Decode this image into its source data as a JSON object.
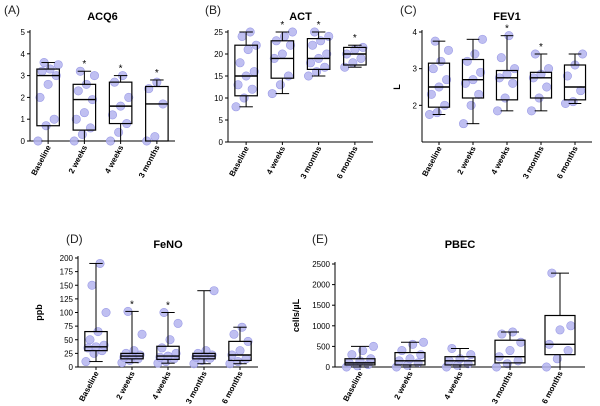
{
  "chart_data": [
    {
      "panel": "(A)",
      "title": "ACQ6",
      "type": "box",
      "ylabel": "",
      "ylim": [
        0,
        5
      ],
      "yticks": [
        0,
        1,
        2,
        3,
        4,
        5
      ],
      "categories": [
        "Baseline",
        "2 weeks",
        "4 weeks",
        "3 months"
      ],
      "significance": [
        "",
        "*",
        "*",
        "*"
      ],
      "boxes": [
        {
          "min": 0.0,
          "q1": 0.7,
          "median": 3.0,
          "q3": 3.3,
          "max": 3.6
        },
        {
          "min": 0.0,
          "q1": 0.5,
          "median": 1.9,
          "q3": 2.6,
          "max": 3.2
        },
        {
          "min": 0.0,
          "q1": 0.8,
          "median": 1.6,
          "q3": 2.7,
          "max": 3.0
        },
        {
          "min": 0.0,
          "q1": 0.0,
          "median": 1.7,
          "q3": 2.5,
          "max": 2.8
        }
      ],
      "points": [
        [
          0.0,
          0.7,
          1.0,
          2.0,
          2.6,
          3.0,
          3.2,
          3.3,
          3.5,
          3.6
        ],
        [
          0.0,
          0.3,
          0.6,
          1.0,
          1.3,
          1.9,
          2.3,
          2.6,
          3.0,
          3.2
        ],
        [
          0.0,
          0.4,
          0.8,
          1.2,
          1.6,
          2.0,
          2.7,
          3.0
        ],
        [
          0.0,
          0.2,
          1.7,
          2.4,
          2.7
        ]
      ]
    },
    {
      "panel": "(B)",
      "title": "ACT",
      "type": "box",
      "ylabel": "",
      "ylim": [
        0,
        25
      ],
      "yticks": [
        0,
        5,
        10,
        15,
        20,
        25
      ],
      "categories": [
        "Baseline",
        "4 weeks",
        "3 months",
        "6 months"
      ],
      "significance": [
        "",
        "*",
        "*",
        "*"
      ],
      "boxes": [
        {
          "min": 8,
          "q1": 10.5,
          "median": 15,
          "q3": 22,
          "max": 25
        },
        {
          "min": 11,
          "q1": 14.5,
          "median": 19,
          "q3": 23,
          "max": 25
        },
        {
          "min": 15,
          "q1": 16.5,
          "median": 19,
          "q3": 23.5,
          "max": 25
        },
        {
          "min": 17,
          "q1": 17.5,
          "median": 20,
          "q3": 21.5,
          "max": 22
        }
      ],
      "points": [
        [
          8,
          10,
          12,
          13,
          15,
          16,
          18,
          21,
          22,
          24,
          25
        ],
        [
          11,
          13,
          15,
          19,
          20,
          22,
          23,
          24,
          25
        ],
        [
          15,
          16,
          17,
          18,
          19,
          20,
          22,
          23,
          24,
          25
        ],
        [
          17,
          18,
          19,
          20,
          21,
          21.5
        ]
      ]
    },
    {
      "panel": "(C)",
      "title": "FEV1",
      "type": "box",
      "ylabel": "L",
      "ylim": [
        1,
        4
      ],
      "yticks": [
        2,
        3,
        4
      ],
      "categories": [
        "Baseline",
        "2 weeks",
        "4 weeks",
        "3 months",
        "6 months"
      ],
      "significance": [
        "",
        "",
        "*",
        "*",
        ""
      ],
      "boxes": [
        {
          "min": 1.75,
          "q1": 1.95,
          "median": 2.5,
          "q3": 3.15,
          "max": 3.75
        },
        {
          "min": 1.5,
          "q1": 2.2,
          "median": 2.7,
          "q3": 3.25,
          "max": 3.8
        },
        {
          "min": 1.85,
          "q1": 2.15,
          "median": 2.75,
          "q3": 2.95,
          "max": 3.9
        },
        {
          "min": 1.85,
          "q1": 2.2,
          "median": 2.75,
          "q3": 2.9,
          "max": 3.4
        },
        {
          "min": 2.05,
          "q1": 2.15,
          "median": 2.5,
          "q3": 3.1,
          "max": 3.4
        }
      ],
      "points": [
        [
          1.75,
          1.8,
          2.0,
          2.3,
          2.5,
          2.7,
          3.0,
          3.2,
          3.5,
          3.75
        ],
        [
          1.5,
          2.0,
          2.3,
          2.6,
          2.7,
          2.9,
          3.2,
          3.4,
          3.8
        ],
        [
          1.85,
          2.2,
          2.6,
          2.75,
          2.85,
          3.0,
          3.3,
          3.9
        ],
        [
          1.85,
          2.2,
          2.5,
          2.75,
          2.85,
          3.0,
          3.4
        ],
        [
          2.05,
          2.1,
          2.4,
          2.8,
          3.1,
          3.4
        ]
      ]
    },
    {
      "panel": "(D)",
      "title": "FeNO",
      "type": "box",
      "ylabel": "ppb",
      "ylim": [
        0,
        200
      ],
      "yticks": [
        0,
        25,
        50,
        75,
        100,
        125,
        150,
        175,
        200
      ],
      "categories": [
        "Baseline",
        "2 weeks",
        "4 weeks",
        "3 months",
        "6 months"
      ],
      "significance": [
        "",
        "*",
        "*",
        "",
        ""
      ],
      "boxes": [
        {
          "min": 10,
          "q1": 30,
          "median": 37,
          "q3": 65,
          "max": 190
        },
        {
          "min": 8,
          "q1": 15,
          "median": 20,
          "q3": 25,
          "max": 102
        },
        {
          "min": 7,
          "q1": 14,
          "median": 20,
          "q3": 38,
          "max": 100
        },
        {
          "min": 6,
          "q1": 15,
          "median": 20,
          "q3": 25,
          "max": 140
        },
        {
          "min": 6,
          "q1": 12,
          "median": 22,
          "q3": 47,
          "max": 73
        }
      ],
      "points": [
        [
          10,
          25,
          30,
          35,
          37,
          40,
          50,
          65,
          100,
          150,
          190
        ],
        [
          8,
          12,
          15,
          18,
          20,
          22,
          25,
          30,
          60,
          102
        ],
        [
          7,
          10,
          15,
          18,
          20,
          25,
          35,
          50,
          80,
          100
        ],
        [
          6,
          12,
          16,
          18,
          20,
          22,
          25,
          30,
          140
        ],
        [
          6,
          10,
          15,
          22,
          30,
          47,
          60,
          73
        ]
      ]
    },
    {
      "panel": "(E)",
      "title": "PBEC",
      "type": "box",
      "ylabel": "cells/µL",
      "ylim": [
        0,
        2500
      ],
      "yticks": [
        0,
        500,
        1000,
        1500,
        2000,
        2500
      ],
      "categories": [
        "Baseline",
        "2 weeks",
        "4 weeks",
        "3 months",
        "6 months"
      ],
      "significance": [
        "",
        "",
        "",
        "",
        ""
      ],
      "boxes": [
        {
          "min": 0,
          "q1": 50,
          "median": 100,
          "q3": 200,
          "max": 500
        },
        {
          "min": 0,
          "q1": 50,
          "median": 150,
          "q3": 350,
          "max": 600
        },
        {
          "min": 0,
          "q1": 50,
          "median": 150,
          "q3": 250,
          "max": 450
        },
        {
          "min": 0,
          "q1": 100,
          "median": 250,
          "q3": 650,
          "max": 850
        },
        {
          "min": 0,
          "q1": 300,
          "median": 550,
          "q3": 1250,
          "max": 2280
        }
      ],
      "points": [
        [
          0,
          30,
          60,
          100,
          150,
          200,
          300,
          400,
          500
        ],
        [
          0,
          40,
          100,
          150,
          200,
          300,
          400,
          550,
          600
        ],
        [
          0,
          40,
          80,
          150,
          200,
          300,
          450
        ],
        [
          0,
          80,
          150,
          250,
          400,
          600,
          800,
          850
        ],
        [
          0,
          200,
          400,
          550,
          900,
          1000,
          2280
        ]
      ]
    }
  ],
  "colors": {
    "point_fill": "#b4b4ee",
    "point_stroke": "#9a9ae6",
    "box_stroke": "#000000"
  }
}
